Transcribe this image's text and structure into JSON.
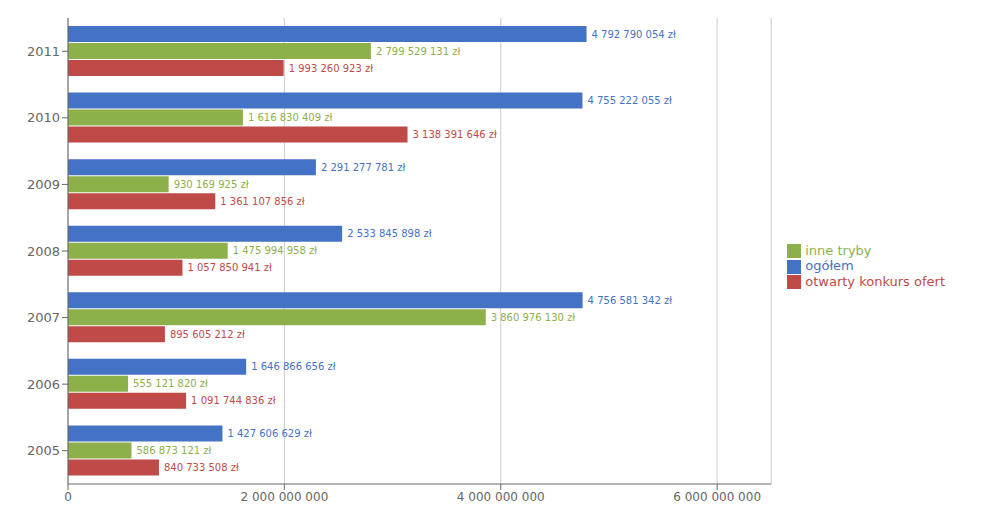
{
  "chart_data": {
    "type": "bar",
    "orientation": "horizontal",
    "categories": [
      "2011",
      "2010",
      "2009",
      "2008",
      "2007",
      "2006",
      "2005"
    ],
    "series": [
      {
        "name": "ogółem",
        "color": "#4472C4",
        "values": [
          4792790054,
          4755222055,
          2291277781,
          2533845898,
          4756581342,
          1646866656,
          1427606629
        ],
        "value_labels": [
          "4 792 790 054 zł",
          "4 755 222 055 zł",
          "2 291 277 781 zł",
          "2 533 845 898 zł",
          "4 756 581 342 zł",
          "1 646 866 656 zł",
          "1 427 606 629 zł"
        ]
      },
      {
        "name": "inne tryby",
        "color": "#8DB04B",
        "values": [
          2799529131,
          1616830409,
          930169925,
          1475994958,
          3860976130,
          555121820,
          586873121
        ],
        "value_labels": [
          "2 799 529 131 zł",
          "1 616 830 409 zł",
          "930 169 925 zł",
          "1 475 994 958 zł",
          "3 860 976 130 zł",
          "555 121 820 zł",
          "586 873 121 zł"
        ]
      },
      {
        "name": "otwarty konkurs ofert",
        "color": "#BE4B48",
        "values": [
          1993260923,
          3138391646,
          1361107856,
          1057850941,
          895605212,
          1091744836,
          840733508
        ],
        "value_labels": [
          "1 993 260 923 zł",
          "3 138 391 646 zł",
          "1 361 107 856 zł",
          "1 057 850 941 zł",
          "895 605 212 zł",
          "1 091 744 836 zł",
          "840 733 508 zł"
        ]
      }
    ],
    "xlim": [
      0,
      6500000000
    ],
    "xticks": [
      0,
      {
        "value": 2000000000,
        "label": "2 000 000 000"
      },
      {
        "value": 4000000000,
        "label": "4 000 000 000"
      },
      {
        "value": 6000000000,
        "label": "6 000 000 000"
      }
    ],
    "grid": true,
    "legend": "right",
    "data_labels": true
  }
}
